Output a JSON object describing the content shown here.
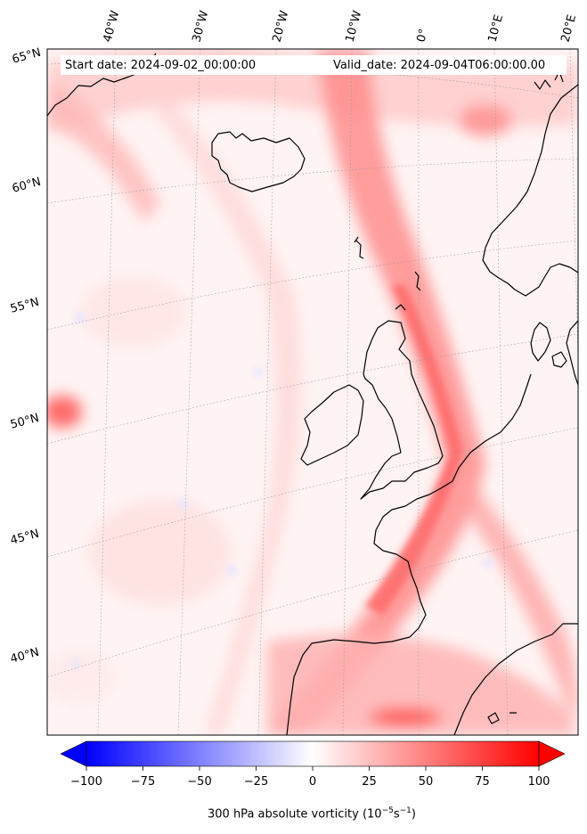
{
  "map": {
    "start_date": "Start date: 2024-09-02_00:00:00",
    "valid_date": "Valid_date: 2024-09-04T06:00:00.00",
    "lon_labels": [
      "40°W",
      "30°W",
      "20°W",
      "10°W",
      "0°",
      "10°E",
      "20°E"
    ],
    "lat_labels": [
      "65°N",
      "60°N",
      "55°N",
      "50°N",
      "45°N",
      "40°N"
    ],
    "field": "300 hPa absolute vorticity",
    "projection": "oblique conic",
    "extent": {
      "lon": [
        -42,
        22
      ],
      "lat": [
        36,
        66
      ]
    },
    "coastlines": true,
    "gridlines": true
  },
  "colorbar": {
    "ticks": [
      "−100",
      "−75",
      "−50",
      "−25",
      "0",
      "25",
      "50",
      "75",
      "100"
    ],
    "label_prefix": "300 hPa absolute vorticity (10",
    "label_exp1": "−5",
    "label_mid": "s",
    "label_exp2": "−1",
    "label_suffix": ")",
    "range": [
      -100,
      100
    ],
    "colormap": "bwr",
    "extend": "both",
    "colors": {
      "min": "#0000ff",
      "mid": "#ffffff",
      "max": "#ff0000"
    }
  }
}
